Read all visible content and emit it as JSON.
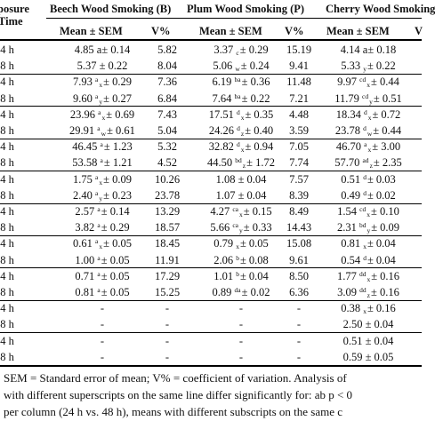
{
  "header": {
    "row_label_line1": "posure",
    "row_label_line2": "Time",
    "groups": [
      "Beech Wood Smoking (B)",
      "Plum Wood Smoking (P)",
      "Cherry Wood Smoking"
    ],
    "sub": {
      "b_mean": "Mean ± SEM",
      "b_v": "V%",
      "p_mean": "Mean ± SEM",
      "p_v": "V%",
      "c_mean": "Mean ± SEM",
      "c_v": "V"
    }
  },
  "rows": [
    {
      "t": "24 h",
      "b": [
        {
          "v": "4.85 "
        },
        {
          "p": "a"
        },
        {
          "v": "± 0.14"
        }
      ],
      "bv": "5.82",
      "p": [
        {
          "v": "3.37 "
        },
        {
          "sb": "c"
        },
        {
          "v": "± 0.29"
        }
      ],
      "pv": "15.19",
      "c": [
        {
          "v": "4.14 "
        },
        {
          "p": "a"
        },
        {
          "v": "± 0.18"
        }
      ]
    },
    {
      "t": "48 h",
      "b": [
        {
          "v": "5.37 ± 0.22"
        }
      ],
      "bv": "8.04",
      "p": [
        {
          "v": "5.06 "
        },
        {
          "sb": "w"
        },
        {
          "v": "± 0.24"
        }
      ],
      "pv": "9.41",
      "c": [
        {
          "v": "5.33 "
        },
        {
          "sb": "y"
        },
        {
          "v": "± 0.22"
        }
      ]
    },
    {
      "t": "24 h",
      "b": [
        {
          "v": "7.93 "
        },
        {
          "sp": "a"
        },
        {
          "sb": "x"
        },
        {
          "v": "± 0.29"
        }
      ],
      "bv": "7.36",
      "p": [
        {
          "v": "6.19 "
        },
        {
          "sp": "ba"
        },
        {
          "v": "± 0.36"
        }
      ],
      "pv": "11.48",
      "c": [
        {
          "v": "9.97 "
        },
        {
          "sp": "cd"
        },
        {
          "sb": "x"
        },
        {
          "v": "± 0.44"
        }
      ]
    },
    {
      "t": "48 h",
      "b": [
        {
          "v": "9.60 "
        },
        {
          "sp": "a"
        },
        {
          "sb": "y"
        },
        {
          "v": "± 0.27"
        }
      ],
      "bv": "6.84",
      "p": [
        {
          "v": "7.64 "
        },
        {
          "sp": "ba"
        },
        {
          "v": "± 0.22"
        }
      ],
      "pv": "7.21",
      "c": [
        {
          "v": "11.79 "
        },
        {
          "sp": "cd"
        },
        {
          "sb": "y"
        },
        {
          "v": "± 0.51"
        }
      ]
    },
    {
      "t": "24 h",
      "b": [
        {
          "v": "23.96 "
        },
        {
          "sp": "a"
        },
        {
          "sb": "x"
        },
        {
          "v": "± 0.69"
        }
      ],
      "bv": "7.43",
      "p": [
        {
          "v": "17.51 "
        },
        {
          "sp": "d"
        },
        {
          "sb": "x"
        },
        {
          "v": "± 0.35"
        }
      ],
      "pv": "4.48",
      "c": [
        {
          "v": "18.34 "
        },
        {
          "sp": "d"
        },
        {
          "sb": "x"
        },
        {
          "v": "± 0.72"
        }
      ]
    },
    {
      "t": "48 h",
      "b": [
        {
          "v": "29.91 "
        },
        {
          "sp": "a"
        },
        {
          "sb": "w"
        },
        {
          "v": "± 0.61"
        }
      ],
      "bv": "5.04",
      "p": [
        {
          "v": "24.26 "
        },
        {
          "sp": "d"
        },
        {
          "sb": "z"
        },
        {
          "v": "± 0.40"
        }
      ],
      "pv": "3.59",
      "c": [
        {
          "v": "23.78 "
        },
        {
          "sp": "d"
        },
        {
          "sb": "w"
        },
        {
          "v": "± 0.44"
        }
      ]
    },
    {
      "t": "24 h",
      "b": [
        {
          "v": "46.45 "
        },
        {
          "sp": "a"
        },
        {
          "v": "± 1.23"
        }
      ],
      "bv": "5.32",
      "p": [
        {
          "v": "32.82 "
        },
        {
          "sp": "d"
        },
        {
          "sb": "x"
        },
        {
          "v": "± 0.94"
        }
      ],
      "pv": "7.05",
      "c": [
        {
          "v": "46.70 "
        },
        {
          "sp": "a"
        },
        {
          "sb": "x"
        },
        {
          "v": "± 3.00"
        }
      ]
    },
    {
      "t": "48 h",
      "b": [
        {
          "v": "53.58 "
        },
        {
          "sp": "a"
        },
        {
          "v": "± 1.21"
        }
      ],
      "bv": "4.52",
      "p": [
        {
          "v": "44.50 "
        },
        {
          "sp": "bd"
        },
        {
          "sb": "z"
        },
        {
          "v": "± 1.72"
        }
      ],
      "pv": "7.74",
      "c": [
        {
          "v": "57.70 "
        },
        {
          "sp": "ad"
        },
        {
          "sb": "z"
        },
        {
          "v": "± 2.35"
        }
      ]
    },
    {
      "t": "24 h",
      "b": [
        {
          "v": "1.75 "
        },
        {
          "sp": "a"
        },
        {
          "sb": "x"
        },
        {
          "v": "± 0.09"
        }
      ],
      "bv": "10.26",
      "p": [
        {
          "v": "1.08 ± 0.04"
        }
      ],
      "pv": "7.57",
      "c": [
        {
          "v": "0.51 "
        },
        {
          "sp": "d"
        },
        {
          "v": "± 0.03"
        }
      ]
    },
    {
      "t": "48 h",
      "b": [
        {
          "v": "2.40 "
        },
        {
          "sp": "a"
        },
        {
          "sb": "y"
        },
        {
          "v": "± 0.23"
        }
      ],
      "bv": "23.78",
      "p": [
        {
          "v": "1.07 ± 0.04"
        }
      ],
      "pv": "8.39",
      "c": [
        {
          "v": "0.49 "
        },
        {
          "sp": "d"
        },
        {
          "v": "± 0.02"
        }
      ]
    },
    {
      "t": "24 h",
      "b": [
        {
          "v": "2.57 "
        },
        {
          "sp": "a"
        },
        {
          "v": "± 0.14"
        }
      ],
      "bv": "13.29",
      "p": [
        {
          "v": "4.27 "
        },
        {
          "sp": "ca"
        },
        {
          "sb": "x"
        },
        {
          "v": "± 0.15"
        }
      ],
      "pv": "8.49",
      "c": [
        {
          "v": "1.54 "
        },
        {
          "sp": "cd"
        },
        {
          "sb": "x"
        },
        {
          "v": "± 0.10"
        }
      ]
    },
    {
      "t": "48 h",
      "b": [
        {
          "v": "3.82 "
        },
        {
          "sp": "a"
        },
        {
          "v": "± 0.29"
        }
      ],
      "bv": "18.57",
      "p": [
        {
          "v": "5.66 "
        },
        {
          "sp": "ca"
        },
        {
          "sb": "y"
        },
        {
          "v": "± 0.33"
        }
      ],
      "pv": "14.43",
      "c": [
        {
          "v": "2.31 "
        },
        {
          "sp": "bd"
        },
        {
          "sb": "y"
        },
        {
          "v": "± 0.09"
        }
      ]
    },
    {
      "t": "24 h",
      "b": [
        {
          "v": "0.61 "
        },
        {
          "sp": "a"
        },
        {
          "sb": "x"
        },
        {
          "v": "± 0.05"
        }
      ],
      "bv": "18.45",
      "p": [
        {
          "v": "0.79 "
        },
        {
          "sb": "x"
        },
        {
          "v": "± 0.05"
        }
      ],
      "pv": "15.08",
      "c": [
        {
          "v": "0.81 "
        },
        {
          "sb": "x"
        },
        {
          "v": "± 0.04"
        }
      ]
    },
    {
      "t": "48 h",
      "b": [
        {
          "v": "1.00 "
        },
        {
          "sp": "a"
        },
        {
          "v": "± 0.05"
        }
      ],
      "bv": "11.91",
      "p": [
        {
          "v": "2.06 "
        },
        {
          "sp": "b"
        },
        {
          "v": "± 0.08"
        }
      ],
      "pv": "9.61",
      "c": [
        {
          "v": "0.54 "
        },
        {
          "sp": "d"
        },
        {
          "v": "± 0.04"
        }
      ]
    },
    {
      "t": "24 h",
      "b": [
        {
          "v": "0.71 "
        },
        {
          "sp": "a"
        },
        {
          "v": "± 0.05"
        }
      ],
      "bv": "17.29",
      "p": [
        {
          "v": "1.01 "
        },
        {
          "sp": "b"
        },
        {
          "v": "± 0.04"
        }
      ],
      "pv": "8.50",
      "c": [
        {
          "v": "1.77 "
        },
        {
          "sp": "dd"
        },
        {
          "sb": "x"
        },
        {
          "v": "± 0.16"
        }
      ]
    },
    {
      "t": "48 h",
      "b": [
        {
          "v": "0.81 "
        },
        {
          "sp": "a"
        },
        {
          "v": "± 0.05"
        }
      ],
      "bv": "15.25",
      "p": [
        {
          "v": "0.89 "
        },
        {
          "sp": "da"
        },
        {
          "v": "± 0.02"
        }
      ],
      "pv": "6.36",
      "c": [
        {
          "v": "3.09 "
        },
        {
          "sp": "dd"
        },
        {
          "sb": "z"
        },
        {
          "v": "± 0.16"
        }
      ]
    },
    {
      "t": "24 h",
      "b": [
        {
          "v": "-"
        }
      ],
      "bv": "-",
      "p": [
        {
          "v": "-"
        }
      ],
      "pv": "-",
      "c": [
        {
          "v": "0.38 "
        },
        {
          "sb": "x"
        },
        {
          "v": "± 0.16"
        }
      ]
    },
    {
      "t": "48 h",
      "b": [
        {
          "v": "-"
        }
      ],
      "bv": "-",
      "p": [
        {
          "v": "-"
        }
      ],
      "pv": "-",
      "c": [
        {
          "v": "2.50 ± 0.04"
        }
      ]
    },
    {
      "t": "24 h",
      "b": [
        {
          "v": "-"
        }
      ],
      "bv": "-",
      "p": [
        {
          "v": "-"
        }
      ],
      "pv": "-",
      "c": [
        {
          "v": "0.51 ± 0.04"
        }
      ]
    },
    {
      "t": "48 h",
      "b": [
        {
          "v": "-"
        }
      ],
      "bv": "-",
      "p": [
        {
          "v": "-"
        }
      ],
      "pv": "-",
      "c": [
        {
          "v": "0.59 ± 0.05"
        }
      ]
    }
  ],
  "notes": [
    "SEM = Standard error of mean; V% = coefficient of variation. Analysis of",
    "with different superscripts on the same line differ significantly for: ab p < 0",
    "per column (24 h vs. 48 h), means with different subscripts on the same c"
  ]
}
